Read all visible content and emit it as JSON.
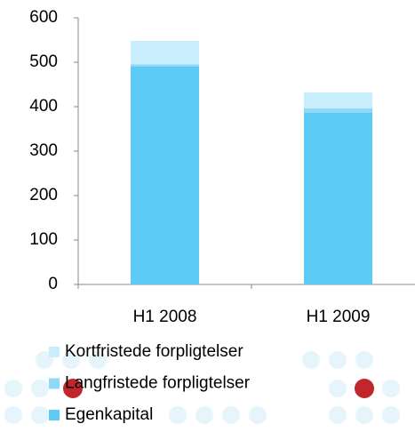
{
  "chart_data": {
    "type": "stacked_bar",
    "categories": [
      "H1 2008",
      "H1 2009"
    ],
    "series": [
      {
        "name": "Egenkapital",
        "color": "#5ccbf5",
        "values": [
          490,
          386
        ]
      },
      {
        "name": "Langfristede forpligtelser",
        "color": "#8fd9f8",
        "values": [
          5,
          10
        ]
      },
      {
        "name": "Kortfristede forpligtelser",
        "color": "#c8edfc",
        "values": [
          53,
          36
        ]
      }
    ],
    "ylim": [
      0,
      600
    ],
    "yticks": [
      0,
      100,
      200,
      300,
      400,
      500,
      600
    ],
    "grid": false
  }
}
